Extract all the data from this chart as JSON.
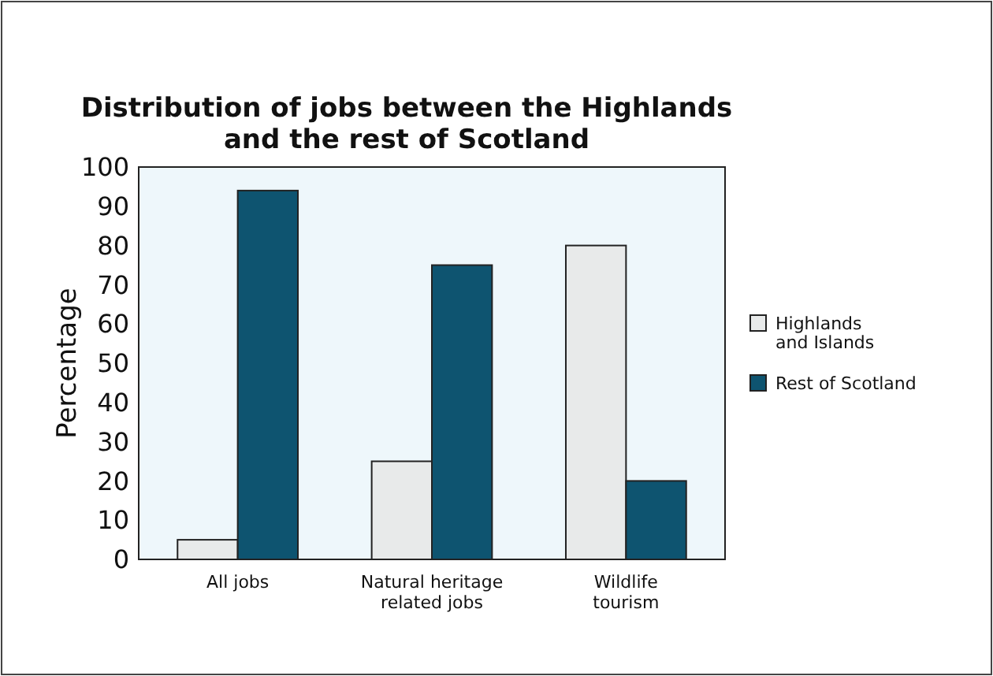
{
  "chart_data": {
    "type": "bar",
    "title": "Distribution of jobs between the Highlands\nand the rest of Scotland",
    "ylabel": "Percentage",
    "categories": [
      "All jobs",
      "Natural heritage\nrelated jobs",
      "Wildlife\ntourism"
    ],
    "series": [
      {
        "name": "Highlands\nand Islands",
        "color": "#e8eaea",
        "values": [
          5,
          25,
          80
        ]
      },
      {
        "name": "Rest of Scotland",
        "color": "#0e5470",
        "values": [
          94,
          75,
          20
        ]
      }
    ],
    "ylim": [
      0,
      100
    ],
    "yticks": [
      0,
      10,
      20,
      30,
      40,
      50,
      60,
      70,
      80,
      90,
      100
    ],
    "grid": false,
    "legend": "right"
  }
}
